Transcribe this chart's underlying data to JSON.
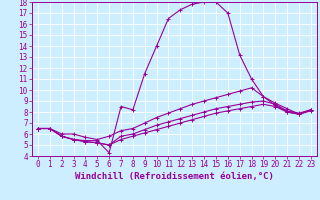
{
  "xlabel": "Windchill (Refroidissement éolien,°C)",
  "background_color": "#cceeff",
  "grid_color": "#ffffff",
  "line_color": "#990099",
  "xlim": [
    -0.5,
    23.5
  ],
  "ylim": [
    4,
    18
  ],
  "xticks": [
    0,
    1,
    2,
    3,
    4,
    5,
    6,
    7,
    8,
    9,
    10,
    11,
    12,
    13,
    14,
    15,
    16,
    17,
    18,
    19,
    20,
    21,
    22,
    23
  ],
  "yticks": [
    4,
    5,
    6,
    7,
    8,
    9,
    10,
    11,
    12,
    13,
    14,
    15,
    16,
    17,
    18
  ],
  "lines": [
    {
      "x": [
        0,
        1,
        2,
        3,
        4,
        5,
        6,
        7,
        8,
        9,
        10,
        11,
        12,
        13,
        14,
        15,
        16,
        17,
        18,
        19,
        20,
        21,
        22,
        23
      ],
      "y": [
        6.5,
        6.5,
        5.8,
        5.5,
        5.4,
        5.4,
        4.3,
        8.5,
        8.2,
        11.5,
        14.0,
        16.5,
        17.3,
        17.8,
        18.0,
        18.0,
        17.0,
        13.2,
        11.0,
        9.4,
        8.6,
        8.0,
        7.8,
        8.2
      ]
    },
    {
      "x": [
        0,
        1,
        2,
        3,
        4,
        5,
        6,
        7,
        8,
        9,
        10,
        11,
        12,
        13,
        14,
        15,
        16,
        17,
        18,
        19,
        20,
        21,
        22,
        23
      ],
      "y": [
        6.5,
        6.5,
        6.0,
        6.0,
        5.7,
        5.5,
        5.8,
        6.3,
        6.5,
        7.0,
        7.5,
        7.9,
        8.3,
        8.7,
        9.0,
        9.3,
        9.6,
        9.9,
        10.2,
        9.4,
        8.8,
        8.3,
        7.8,
        8.2
      ]
    },
    {
      "x": [
        0,
        1,
        2,
        3,
        4,
        5,
        6,
        7,
        8,
        9,
        10,
        11,
        12,
        13,
        14,
        15,
        16,
        17,
        18,
        19,
        20,
        21,
        22,
        23
      ],
      "y": [
        6.5,
        6.5,
        5.8,
        5.5,
        5.3,
        5.2,
        5.0,
        5.8,
        6.0,
        6.4,
        6.8,
        7.1,
        7.4,
        7.7,
        8.0,
        8.3,
        8.5,
        8.7,
        8.9,
        9.0,
        8.7,
        8.1,
        7.9,
        8.2
      ]
    },
    {
      "x": [
        0,
        1,
        2,
        3,
        4,
        5,
        6,
        7,
        8,
        9,
        10,
        11,
        12,
        13,
        14,
        15,
        16,
        17,
        18,
        19,
        20,
        21,
        22,
        23
      ],
      "y": [
        6.5,
        6.5,
        5.8,
        5.5,
        5.3,
        5.2,
        5.0,
        5.5,
        5.8,
        6.1,
        6.4,
        6.7,
        7.0,
        7.3,
        7.6,
        7.9,
        8.1,
        8.3,
        8.5,
        8.7,
        8.5,
        8.0,
        7.8,
        8.1
      ]
    }
  ],
  "marker": "+",
  "marker_size": 3,
  "line_width": 0.8,
  "xlabel_fontsize": 6.5,
  "tick_fontsize": 5.5
}
